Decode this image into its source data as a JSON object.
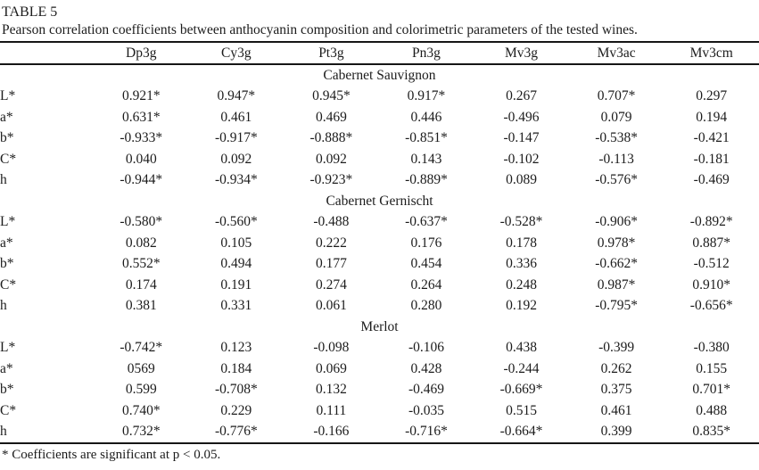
{
  "table": {
    "label": "TABLE 5",
    "caption": "Pearson correlation coefficients between anthocyanin composition and colorimetric parameters of the tested wines.",
    "columns": [
      "",
      "Dp3g",
      "Cy3g",
      "Pt3g",
      "Pn3g",
      "Mv3g",
      "Mv3ac",
      "Mv3cm"
    ],
    "sections": [
      {
        "name": "Cabernet Sauvignon",
        "rows": [
          {
            "label": "L*",
            "values": [
              "0.921*",
              "0.947*",
              "0.945*",
              "0.917*",
              "0.267",
              "0.707*",
              "0.297"
            ]
          },
          {
            "label": "a*",
            "values": [
              "0.631*",
              "0.461",
              "0.469",
              "0.446",
              "-0.496",
              "0.079",
              "0.194"
            ]
          },
          {
            "label": "b*",
            "values": [
              "-0.933*",
              "-0.917*",
              "-0.888*",
              "-0.851*",
              "-0.147",
              "-0.538*",
              "-0.421"
            ]
          },
          {
            "label": "C*",
            "values": [
              "0.040",
              "0.092",
              "0.092",
              "0.143",
              "-0.102",
              "-0.113",
              "-0.181"
            ]
          },
          {
            "label": "h",
            "values": [
              "-0.944*",
              "-0.934*",
              "-0.923*",
              "-0.889*",
              "0.089",
              "-0.576*",
              "-0.469"
            ]
          }
        ]
      },
      {
        "name": "Cabernet Gernischt",
        "rows": [
          {
            "label": "L*",
            "values": [
              "-0.580*",
              "-0.560*",
              "-0.488",
              "-0.637*",
              "-0.528*",
              "-0.906*",
              "-0.892*"
            ]
          },
          {
            "label": "a*",
            "values": [
              "0.082",
              "0.105",
              "0.222",
              "0.176",
              "0.178",
              "0.978*",
              "0.887*"
            ]
          },
          {
            "label": "b*",
            "values": [
              "0.552*",
              "0.494",
              "0.177",
              "0.454",
              "0.336",
              "-0.662*",
              "-0.512"
            ]
          },
          {
            "label": "C*",
            "values": [
              "0.174",
              "0.191",
              "0.274",
              "0.264",
              "0.248",
              "0.987*",
              "0.910*"
            ]
          },
          {
            "label": "h",
            "values": [
              "0.381",
              "0.331",
              "0.061",
              "0.280",
              "0.192",
              "-0.795*",
              "-0.656*"
            ]
          }
        ]
      },
      {
        "name": "Merlot",
        "rows": [
          {
            "label": "L*",
            "values": [
              "-0.742*",
              "0.123",
              "-0.098",
              "-0.106",
              "0.438",
              "-0.399",
              "-0.380"
            ]
          },
          {
            "label": "a*",
            "values": [
              "0569",
              "0.184",
              "0.069",
              "0.428",
              "-0.244",
              "0.262",
              "0.155"
            ]
          },
          {
            "label": "b*",
            "values": [
              "0.599",
              "-0.708*",
              "0.132",
              "-0.469",
              "-0.669*",
              "0.375",
              "0.701*"
            ]
          },
          {
            "label": "C*",
            "values": [
              "0.740*",
              "0.229",
              "0.111",
              "-0.035",
              "0.515",
              "0.461",
              "0.488"
            ]
          },
          {
            "label": "h",
            "values": [
              "0.732*",
              "-0.776*",
              "-0.166",
              "-0.716*",
              "-0.664*",
              "0.399",
              "0.835*"
            ]
          }
        ]
      }
    ],
    "footnote": "* Coefficients are significant at p < 0.05."
  },
  "chart_data": {
    "type": "table",
    "title": "Pearson correlation coefficients between anthocyanin composition and colorimetric parameters of the tested wines.",
    "columns": [
      "Dp3g",
      "Cy3g",
      "Pt3g",
      "Pn3g",
      "Mv3g",
      "Mv3ac",
      "Mv3cm"
    ],
    "groups": {
      "Cabernet Sauvignon": {
        "L*": [
          "0.921*",
          "0.947*",
          "0.945*",
          "0.917*",
          "0.267",
          "0.707*",
          "0.297"
        ],
        "a*": [
          "0.631*",
          "0.461",
          "0.469",
          "0.446",
          "-0.496",
          "0.079",
          "0.194"
        ],
        "b*": [
          "-0.933*",
          "-0.917*",
          "-0.888*",
          "-0.851*",
          "-0.147",
          "-0.538*",
          "-0.421"
        ],
        "C*": [
          "0.040",
          "0.092",
          "0.092",
          "0.143",
          "-0.102",
          "-0.113",
          "-0.181"
        ],
        "h": [
          "-0.944*",
          "-0.934*",
          "-0.923*",
          "-0.889*",
          "0.089",
          "-0.576*",
          "-0.469"
        ]
      },
      "Cabernet Gernischt": {
        "L*": [
          "-0.580*",
          "-0.560*",
          "-0.488",
          "-0.637*",
          "-0.528*",
          "-0.906*",
          "-0.892*"
        ],
        "a*": [
          "0.082",
          "0.105",
          "0.222",
          "0.176",
          "0.178",
          "0.978*",
          "0.887*"
        ],
        "b*": [
          "0.552*",
          "0.494",
          "0.177",
          "0.454",
          "0.336",
          "-0.662*",
          "-0.512"
        ],
        "C*": [
          "0.174",
          "0.191",
          "0.274",
          "0.264",
          "0.248",
          "0.987*",
          "0.910*"
        ],
        "h": [
          "0.381",
          "0.331",
          "0.061",
          "0.280",
          "0.192",
          "-0.795*",
          "-0.656*"
        ]
      },
      "Merlot": {
        "L*": [
          "-0.742*",
          "0.123",
          "-0.098",
          "-0.106",
          "0.438",
          "-0.399",
          "-0.380"
        ],
        "a*": [
          "0569",
          "0.184",
          "0.069",
          "0.428",
          "-0.244",
          "0.262",
          "0.155"
        ],
        "b*": [
          "0.599",
          "-0.708*",
          "0.132",
          "-0.469",
          "-0.669*",
          "0.375",
          "0.701*"
        ],
        "C*": [
          "0.740*",
          "0.229",
          "0.111",
          "-0.035",
          "0.515",
          "0.461",
          "0.488"
        ],
        "h": [
          "0.732*",
          "-0.776*",
          "-0.166",
          "-0.716*",
          "-0.664*",
          "0.399",
          "0.835*"
        ]
      }
    },
    "footnote": "* Coefficients are significant at p < 0.05."
  }
}
